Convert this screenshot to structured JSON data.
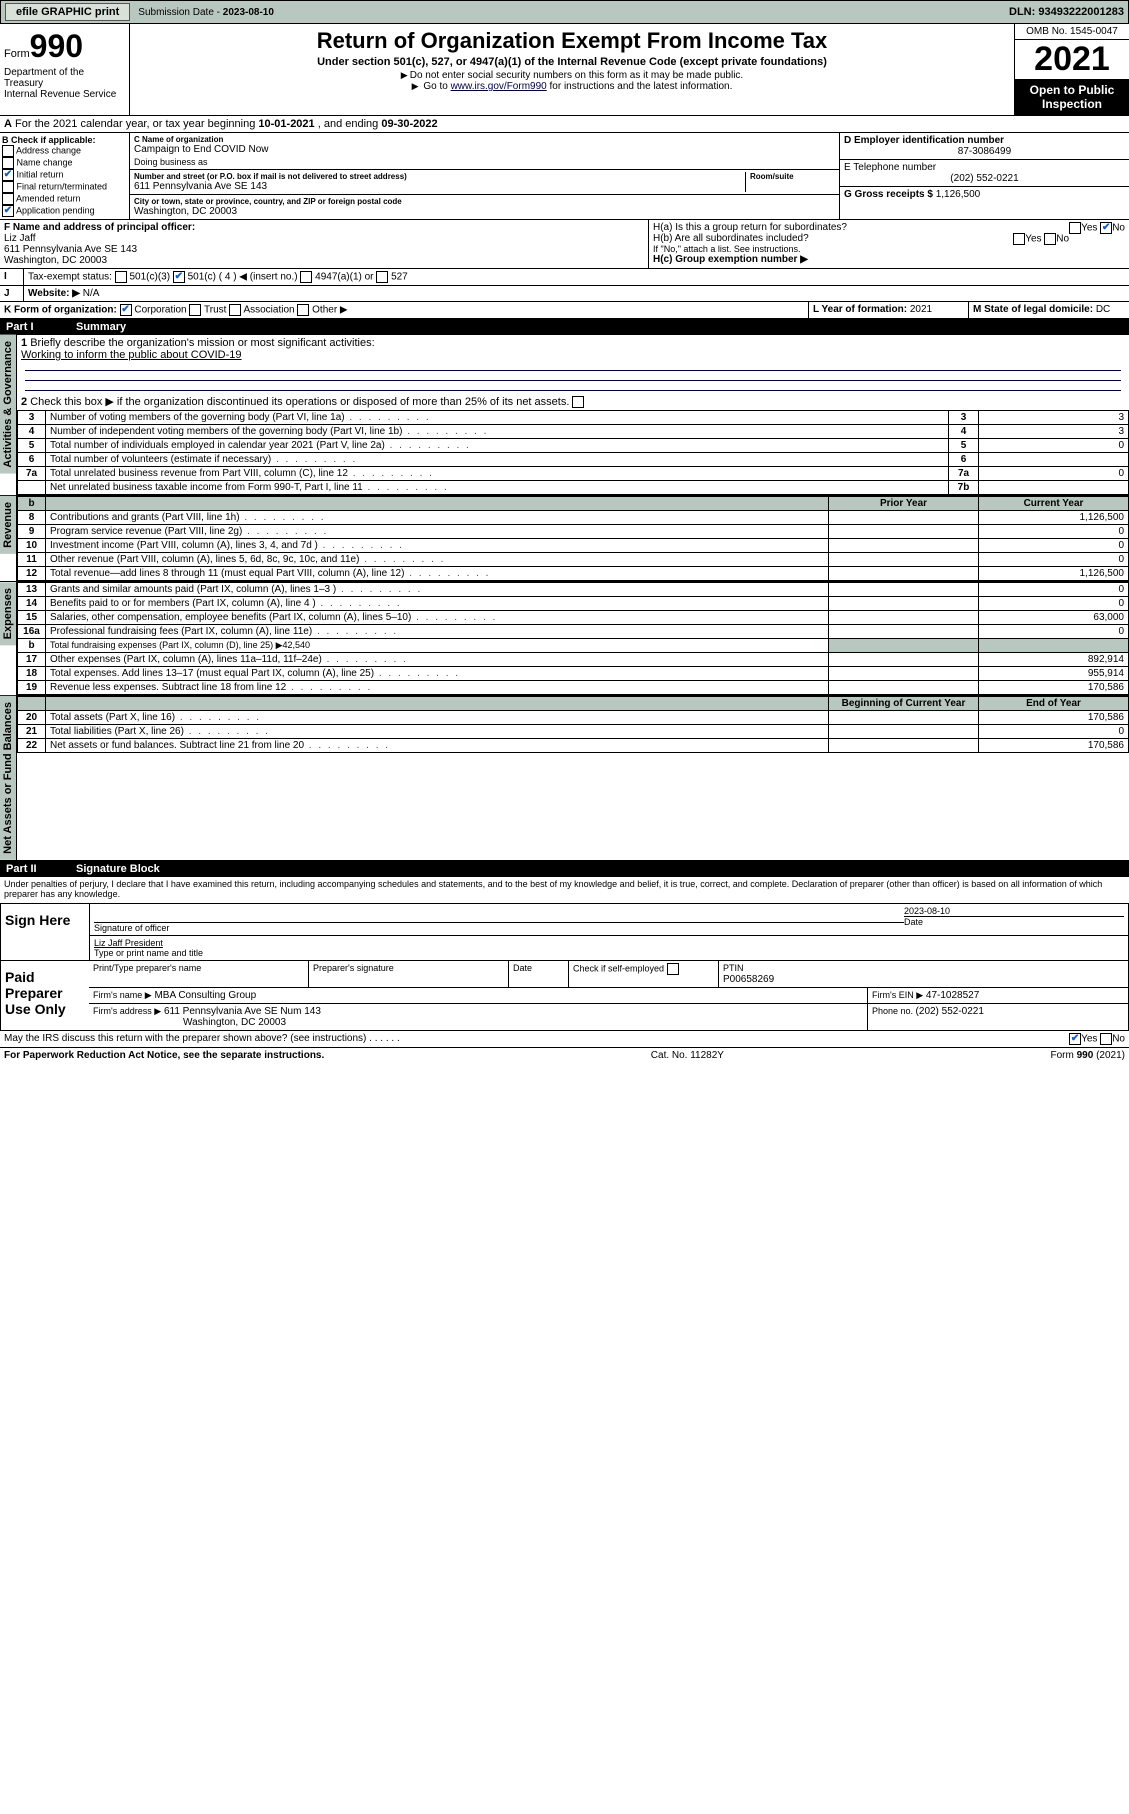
{
  "topbar": {
    "efile": "efile GRAPHIC print",
    "submission_lbl": "Submission Date - ",
    "submission_date": "2023-08-10",
    "dln_lbl": "DLN: ",
    "dln": "93493222001283"
  },
  "header": {
    "form_word": "Form",
    "form_no": "990",
    "dept": "Department of the Treasury",
    "irs": "Internal Revenue Service",
    "title": "Return of Organization Exempt From Income Tax",
    "sub1": "Under section 501(c), 527, or 4947(a)(1) of the Internal Revenue Code (except private foundations)",
    "note1": "Do not enter social security numbers on this form as it may be made public.",
    "note2_pre": "Go to ",
    "note2_link": "www.irs.gov/Form990",
    "note2_post": " for instructions and the latest information.",
    "omb": "OMB No. 1545-0047",
    "year": "2021",
    "open": "Open to Public Inspection"
  },
  "taxyear": {
    "line_a": "For the 2021 calendar year, or tax year beginning ",
    "begin": "10-01-2021",
    "mid": " , and ending ",
    "end": "09-30-2022"
  },
  "boxB": {
    "label": "B Check if applicable:",
    "opts": [
      "Address change",
      "Name change",
      "Initial return",
      "Final return/terminated",
      "Amended return",
      "Application pending"
    ],
    "checked": [
      false,
      false,
      true,
      false,
      false,
      true
    ]
  },
  "boxC": {
    "name_lbl": "C Name of organization",
    "name": "Campaign to End COVID Now",
    "dba_lbl": "Doing business as",
    "dba": "",
    "street_lbl": "Number and street (or P.O. box if mail is not delivered to street address)",
    "room_lbl": "Room/suite",
    "street": "611 Pennsylvania Ave SE 143",
    "city_lbl": "City or town, state or province, country, and ZIP or foreign postal code",
    "city": "Washington, DC  20003"
  },
  "boxD": {
    "lbl": "D Employer identification number",
    "val": "87-3086499"
  },
  "boxE": {
    "lbl": "E Telephone number",
    "val": "(202) 552-0221"
  },
  "boxG": {
    "lbl": "G Gross receipts $ ",
    "val": "1,126,500"
  },
  "boxF": {
    "lbl": "F  Name and address of principal officer:",
    "name": "Liz Jaff",
    "addr1": "611 Pennsylvania Ave SE 143",
    "addr2": "Washington, DC  20003"
  },
  "boxH": {
    "a": "H(a)  Is this a group return for subordinates?",
    "b": "H(b)  Are all subordinates included?",
    "b_note": "If \"No,\" attach a list. See instructions.",
    "c": "H(c)  Group exemption number ▶",
    "yes": "Yes",
    "no": "No"
  },
  "boxI": {
    "lbl": "Tax-exempt status:",
    "opts": [
      "501(c)(3)",
      "501(c) ( 4 ) ◀ (insert no.)",
      "4947(a)(1) or",
      "527"
    ]
  },
  "boxJ": {
    "lbl": "Website: ▶",
    "val": "N/A"
  },
  "boxK": {
    "lbl": "K Form of organization:",
    "opts": [
      "Corporation",
      "Trust",
      "Association",
      "Other ▶"
    ]
  },
  "boxL": {
    "lbl": "L Year of formation: ",
    "val": "2021"
  },
  "boxM": {
    "lbl": "M State of legal domicile: ",
    "val": "DC"
  },
  "part1": {
    "hdr": "Summary",
    "q1": "Briefly describe the organization's mission or most significant activities:",
    "mission": "Working to inform the public about COVID-19",
    "q2": "Check this box ▶       if the organization discontinued its operations or disposed of more than 25% of its net assets.",
    "sections": {
      "gov": "Activities & Governance",
      "rev": "Revenue",
      "exp": "Expenses",
      "net": "Net Assets or Fund Balances"
    },
    "col_prior": "Prior Year",
    "col_curr": "Current Year",
    "col_begin": "Beginning of Current Year",
    "col_end": "End of Year",
    "gov_lines": [
      {
        "n": "3",
        "d": "Number of voting members of the governing body (Part VI, line 1a)",
        "l": "3",
        "v": "3"
      },
      {
        "n": "4",
        "d": "Number of independent voting members of the governing body (Part VI, line 1b)",
        "l": "4",
        "v": "3"
      },
      {
        "n": "5",
        "d": "Total number of individuals employed in calendar year 2021 (Part V, line 2a)",
        "l": "5",
        "v": "0"
      },
      {
        "n": "6",
        "d": "Total number of volunteers (estimate if necessary)",
        "l": "6",
        "v": ""
      },
      {
        "n": "7a",
        "d": "Total unrelated business revenue from Part VIII, column (C), line 12",
        "l": "7a",
        "v": "0"
      },
      {
        "n": "",
        "d": "Net unrelated business taxable income from Form 990-T, Part I, line 11",
        "l": "7b",
        "v": ""
      }
    ],
    "gov_b_label": "b",
    "rev_lines": [
      {
        "n": "8",
        "d": "Contributions and grants (Part VIII, line 1h)",
        "c": "1,126,500"
      },
      {
        "n": "9",
        "d": "Program service revenue (Part VIII, line 2g)",
        "c": "0"
      },
      {
        "n": "10",
        "d": "Investment income (Part VIII, column (A), lines 3, 4, and 7d )",
        "c": "0"
      },
      {
        "n": "11",
        "d": "Other revenue (Part VIII, column (A), lines 5, 6d, 8c, 9c, 10c, and 11e)",
        "c": "0"
      },
      {
        "n": "12",
        "d": "Total revenue—add lines 8 through 11 (must equal Part VIII, column (A), line 12)",
        "c": "1,126,500"
      }
    ],
    "exp_lines": [
      {
        "n": "13",
        "d": "Grants and similar amounts paid (Part IX, column (A), lines 1–3 )",
        "c": "0"
      },
      {
        "n": "14",
        "d": "Benefits paid to or for members (Part IX, column (A), line 4 )",
        "c": "0"
      },
      {
        "n": "15",
        "d": "Salaries, other compensation, employee benefits (Part IX, column (A), lines 5–10)",
        "c": "63,000"
      },
      {
        "n": "16a",
        "d": "Professional fundraising fees (Part IX, column (A), line 11e)",
        "c": "0"
      },
      {
        "n": "b",
        "d": "Total fundraising expenses (Part IX, column (D), line 25) ▶42,540",
        "c": null,
        "shade": true
      },
      {
        "n": "17",
        "d": "Other expenses (Part IX, column (A), lines 11a–11d, 11f–24e)",
        "c": "892,914"
      },
      {
        "n": "18",
        "d": "Total expenses. Add lines 13–17 (must equal Part IX, column (A), line 25)",
        "c": "955,914"
      },
      {
        "n": "19",
        "d": "Revenue less expenses. Subtract line 18 from line 12",
        "c": "170,586"
      }
    ],
    "net_lines": [
      {
        "n": "20",
        "d": "Total assets (Part X, line 16)",
        "c": "170,586"
      },
      {
        "n": "21",
        "d": "Total liabilities (Part X, line 26)",
        "c": "0"
      },
      {
        "n": "22",
        "d": "Net assets or fund balances. Subtract line 21 from line 20",
        "c": "170,586"
      }
    ]
  },
  "part2": {
    "hdr": "Signature Block",
    "decl": "Under penalties of perjury, I declare that I have examined this return, including accompanying schedules and statements, and to the best of my knowledge and belief, it is true, correct, and complete. Declaration of preparer (other than officer) is based on all information of which preparer has any knowledge.",
    "sign_here": "Sign Here",
    "sig_officer": "Signature of officer",
    "sig_date": "2023-08-10",
    "date_lbl": "Date",
    "officer_name": "Liz Jaff President",
    "officer_title_lbl": "Type or print name and title",
    "paid": "Paid Preparer Use Only",
    "prep_name_lbl": "Print/Type preparer's name",
    "prep_sig_lbl": "Preparer's signature",
    "check_self": "Check        if self-employed",
    "ptin_lbl": "PTIN",
    "ptin": "P00658269",
    "firm_name_lbl": "Firm's name   ▶",
    "firm_name": "MBA Consulting Group",
    "firm_ein_lbl": "Firm's EIN ▶",
    "firm_ein": "47-1028527",
    "firm_addr_lbl": "Firm's address ▶",
    "firm_addr1": "611 Pennsylvania Ave SE Num 143",
    "firm_addr2": "Washington, DC  20003",
    "firm_phone_lbl": "Phone no. ",
    "firm_phone": "(202) 552-0221",
    "discuss": "May the IRS discuss this return with the preparer shown above? (see instructions)"
  },
  "footer": {
    "pra": "For Paperwork Reduction Act Notice, see the separate instructions.",
    "cat": "Cat. No. 11282Y",
    "form": "Form 990 (2021)"
  }
}
